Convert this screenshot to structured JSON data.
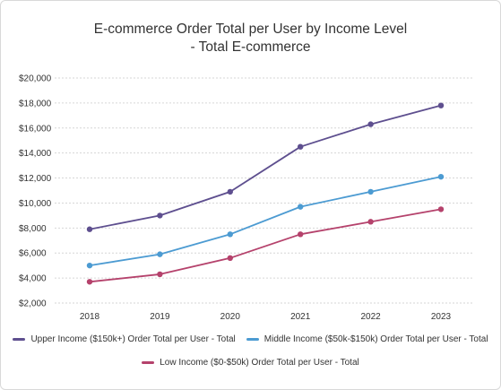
{
  "chart_data": {
    "type": "line",
    "title": "E-commerce Order Total per User by Income Level",
    "subtitle": "- Total E-commerce",
    "x": [
      "2018",
      "2019",
      "2020",
      "2021",
      "2022",
      "2023"
    ],
    "ylim": [
      2000,
      20000
    ],
    "yticks": [
      "$2,000",
      "$4,000",
      "$6,000",
      "$8,000",
      "$10,000",
      "$12,000",
      "$14,000",
      "$16,000",
      "$18,000",
      "$20,000"
    ],
    "ytick_values": [
      2000,
      4000,
      6000,
      8000,
      10000,
      12000,
      14000,
      16000,
      18000,
      20000
    ],
    "grid": true,
    "legend_position": "bottom",
    "series": [
      {
        "name": "Upper Income ($150k+) Order Total per User - Total",
        "color": "#5e4f8f",
        "values": [
          7900,
          9000,
          10900,
          14500,
          16300,
          17800
        ]
      },
      {
        "name": "Middle Income ($50k-$150k) Order Total per User - Total",
        "color": "#4c9bd2",
        "values": [
          5000,
          5900,
          7500,
          9700,
          10900,
          12100
        ]
      },
      {
        "name": "Low Income ($0-$50k) Order Total per User - Total",
        "color": "#b5426c",
        "values": [
          3700,
          4300,
          5600,
          7500,
          8500,
          9500
        ]
      }
    ]
  }
}
